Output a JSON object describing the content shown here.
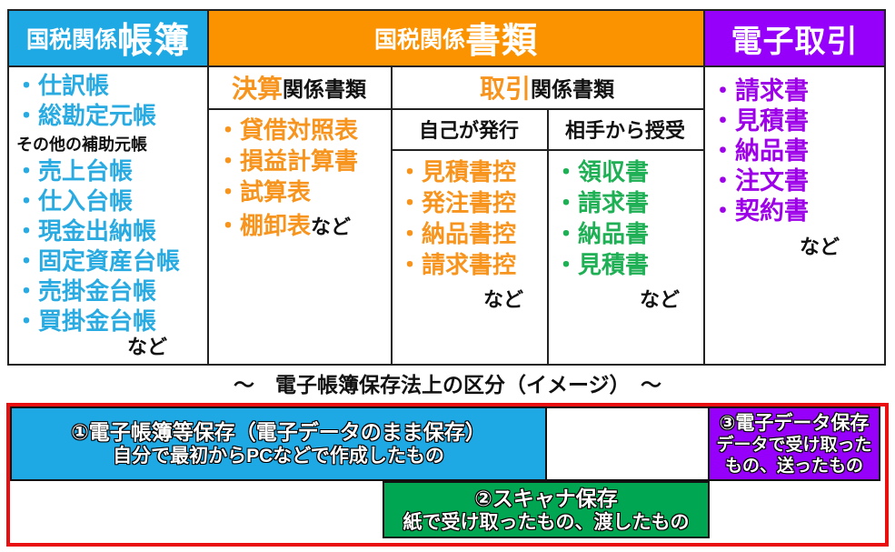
{
  "colors": {
    "cyan": "#1FA9E4",
    "cyan_text": "#29ABE2",
    "orange": "#FB9200",
    "orange_text": "#F7941D",
    "purple": "#9600FA",
    "purple_text": "#9D00E8",
    "green": "#00A651",
    "green_text": "#1FAF54",
    "red": "#E90F10",
    "line": "#222222"
  },
  "table": {
    "col_ledgers": {
      "header_prefix": "国税関係",
      "header_emph": "帳簿",
      "items_top": [
        "仕訳帳",
        "総勘定元帳"
      ],
      "subnote": "その他の補助元帳",
      "items_bottom": [
        "売上台帳",
        "仕入台帳",
        "現金出納帳",
        "固定資産台帳",
        "売掛金台帳",
        "買掛金台帳"
      ],
      "etc": "など"
    },
    "col_documents": {
      "header_prefix": "国税関係",
      "header_emph": "書類",
      "settlement": {
        "header_emph": "決算",
        "header_rest": "関係書類",
        "items": [
          "貸借対照表",
          "損益計算書",
          "試算表"
        ],
        "last_item": "棚卸表",
        "last_suffix": "など"
      },
      "transaction": {
        "header_emph": "取引",
        "header_rest": "関係書類",
        "issued": {
          "header": "自己が発行",
          "items": [
            "見積書控",
            "発注書控",
            "納品書控",
            "請求書控"
          ],
          "etc": "など"
        },
        "received": {
          "header": "相手から授受",
          "items": [
            "領収書",
            "請求書",
            "納品書",
            "見積書"
          ],
          "etc": "など"
        }
      }
    },
    "col_etransactions": {
      "header": "電子取引",
      "items": [
        "請求書",
        "見積書",
        "納品書",
        "注文書",
        "契約書"
      ],
      "etc": "など"
    }
  },
  "caption": "～　電子帳簿保存法上の区分（イメージ）　～",
  "bottom": {
    "box1": {
      "line1": "①電子帳簿等保存（電子データのまま保存）",
      "line2": "自分で最初からPCなどで作成したもの"
    },
    "box2": {
      "line1": "②スキャナ保存",
      "line2": "紙で受け取ったもの、渡したもの"
    },
    "box3": {
      "line1": "③電子データ保存",
      "line2": "データで受け取った",
      "line3": "もの、送ったもの"
    }
  }
}
